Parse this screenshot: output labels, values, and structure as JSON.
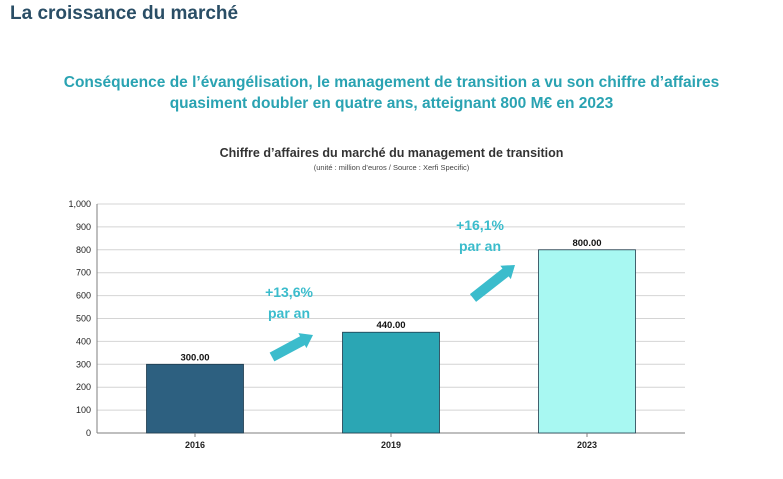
{
  "page": {
    "title": "La croissance du marché",
    "headline_line1": "Conséquence de l’évangélisation, le management de transition a vu son chiffre d’affaires",
    "headline_line2": "quasiment doubler en quatre ans, atteignant 800 M€ en 2023"
  },
  "colors": {
    "title": "#2a4e66",
    "headline": "#2aa3b2",
    "bars": [
      "#2d6080",
      "#2ba6b4",
      "#a8f8f2"
    ],
    "arrow": "#3bbccc"
  },
  "chart_data": {
    "type": "bar",
    "title": "Chiffre d’affaires du marché du management de transition",
    "subtitle": "(unité : million d’euros / Source : Xerfi Specific)",
    "categories": [
      "2016",
      "2019",
      "2023"
    ],
    "values": [
      300,
      440,
      800
    ],
    "data_labels": [
      "300.00",
      "440.00",
      "800.00"
    ],
    "ylim": [
      0,
      1000
    ],
    "yticks": [
      0,
      100,
      200,
      300,
      400,
      500,
      600,
      700,
      800,
      900,
      1000
    ],
    "ytick_labels": [
      "0",
      "100",
      "200",
      "300",
      "400",
      "500",
      "600",
      "700",
      "800",
      "900",
      "1,000"
    ],
    "grid": true,
    "annotations": [
      {
        "line1": "+13,6%",
        "line2": "par an"
      },
      {
        "line1": "+16,1%",
        "line2": "par an"
      }
    ]
  }
}
